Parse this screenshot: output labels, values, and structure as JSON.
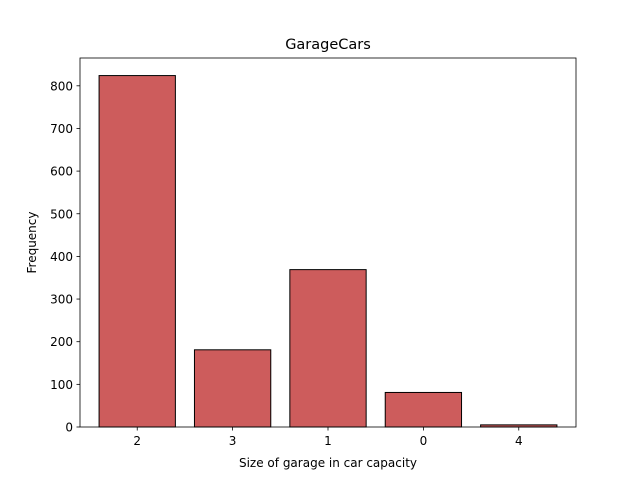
{
  "chart_data": {
    "type": "bar",
    "title": "GarageCars",
    "xlabel": "Size of garage in car capacity",
    "ylabel": "Frequency",
    "categories": [
      "2",
      "3",
      "1",
      "0",
      "4"
    ],
    "values": [
      824,
      181,
      369,
      81,
      5
    ],
    "ylim": [
      0,
      865.2
    ],
    "yticks": [
      0,
      100,
      200,
      300,
      400,
      500,
      600,
      700,
      800
    ],
    "bar_color": "#cd5c5c",
    "edge_color": "#000000",
    "grid": false,
    "legend": "none"
  }
}
